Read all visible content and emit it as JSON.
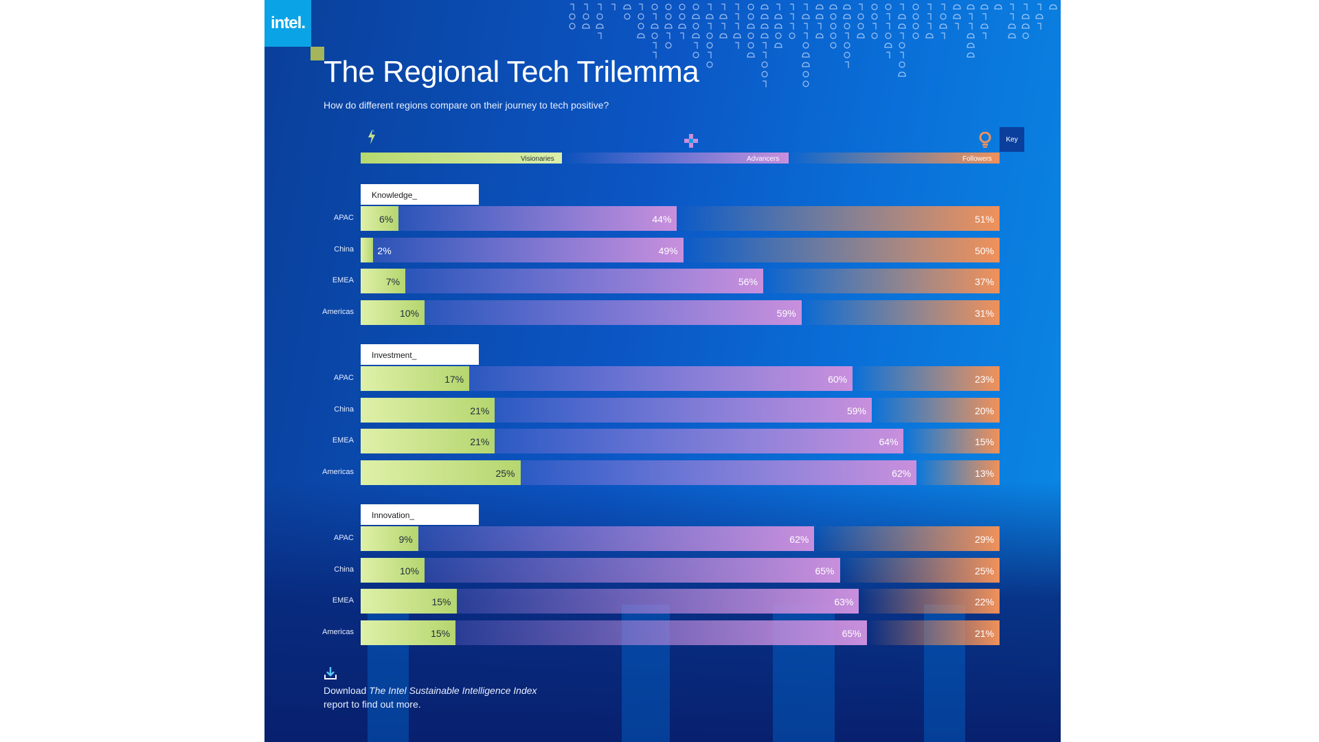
{
  "logo": "intel.",
  "title": "The Regional Tech Trilemma",
  "subtitle": "How do different regions compare on their journey to tech positive?",
  "key": {
    "button": "Key",
    "categories": [
      {
        "label": "Visionaries",
        "icon": "lightning-icon",
        "color": "#c5e08a"
      },
      {
        "label": "Advancers",
        "icon": "plus-icon",
        "color": "#c98fdc"
      },
      {
        "label": "Followers",
        "icon": "lightbulb-icon",
        "color": "#f0915a"
      }
    ]
  },
  "chart_data": {
    "type": "bar",
    "subtype": "stacked-horizontal-100",
    "title": "The Regional Tech Trilemma",
    "series_names": [
      "Visionaries",
      "Advancers",
      "Followers"
    ],
    "sections": [
      {
        "name": "Knowledge_",
        "rows": [
          {
            "region": "APAC",
            "values": [
              6,
              44,
              51
            ]
          },
          {
            "region": "China",
            "values": [
              2,
              49,
              50
            ]
          },
          {
            "region": "EMEA",
            "values": [
              7,
              56,
              37
            ]
          },
          {
            "region": "Americas",
            "values": [
              10,
              59,
              31
            ]
          }
        ]
      },
      {
        "name": "Investment_",
        "rows": [
          {
            "region": "APAC",
            "values": [
              17,
              60,
              23
            ]
          },
          {
            "region": "China",
            "values": [
              21,
              59,
              20
            ]
          },
          {
            "region": "EMEA",
            "values": [
              21,
              64,
              15
            ]
          },
          {
            "region": "Americas",
            "values": [
              25,
              62,
              13
            ]
          }
        ]
      },
      {
        "name": "Innovation_",
        "rows": [
          {
            "region": "APAC",
            "values": [
              9,
              62,
              29
            ]
          },
          {
            "region": "China",
            "values": [
              10,
              65,
              25
            ]
          },
          {
            "region": "EMEA",
            "values": [
              15,
              63,
              22
            ]
          },
          {
            "region": "Americas",
            "values": [
              15,
              65,
              21
            ]
          }
        ]
      }
    ],
    "value_suffix": "%"
  },
  "download": {
    "text_before": "Download ",
    "report_name": "The Intel Sustainable Intelligence Index",
    "text_after": "report to find out more."
  }
}
